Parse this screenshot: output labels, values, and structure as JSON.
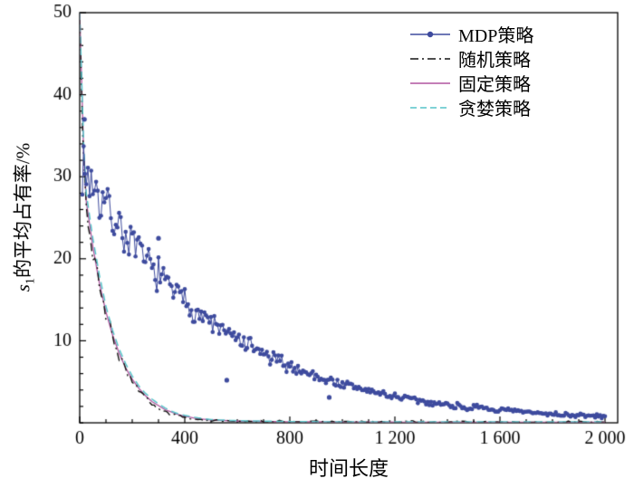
{
  "figure": {
    "background": "#ffffff",
    "axis_color": "#000000",
    "tick_label_color": "#000000"
  },
  "chart_data": {
    "type": "line",
    "title": "",
    "xlabel": "时间长度",
    "ylabel": "s1的平均占有率/%",
    "ylabel_parts": {
      "var": "s",
      "sub": "1",
      "rest": "的平均占有率/%"
    },
    "xlim": [
      0,
      2000
    ],
    "ylim": [
      0,
      50
    ],
    "grid": false,
    "legend_position": "top-right",
    "x_ticks": [
      {
        "v": 0,
        "label": "0"
      },
      {
        "v": 400,
        "label": "400"
      },
      {
        "v": 800,
        "label": "800"
      },
      {
        "v": 1200,
        "label": "1 200"
      },
      {
        "v": 1600,
        "label": "1 600"
      },
      {
        "v": 2000,
        "label": "2 000"
      }
    ],
    "y_ticks": [
      {
        "v": 10,
        "label": "10"
      },
      {
        "v": 20,
        "label": "20"
      },
      {
        "v": 30,
        "label": "30"
      },
      {
        "v": 40,
        "label": "40"
      },
      {
        "v": 50,
        "label": "50"
      }
    ],
    "x_minor_step": 100,
    "y_minor_step": 2,
    "series": [
      {
        "name": "MDP策略",
        "key": "mdp",
        "color": "#3e4b9e",
        "style": "solid",
        "line_width": 1,
        "marker": "circle",
        "marker_size": 2.3,
        "seed": 7,
        "densify_step": 6,
        "noise_base": 0.2,
        "noise_scale": 0.12,
        "x": [
          10,
          25,
          50,
          75,
          100,
          125,
          150,
          175,
          200,
          225,
          250,
          275,
          300,
          325,
          350,
          375,
          400,
          425,
          450,
          475,
          500,
          525,
          550,
          575,
          600,
          625,
          650,
          675,
          700,
          725,
          750,
          775,
          800,
          825,
          850,
          875,
          900,
          925,
          950,
          975,
          1000,
          1025,
          1050,
          1075,
          1100,
          1125,
          1150,
          1175,
          1200,
          1225,
          1250,
          1275,
          1300,
          1325,
          1350,
          1375,
          1400,
          1425,
          1450,
          1475,
          1500,
          1525,
          1550,
          1575,
          1600,
          1625,
          1650,
          1675,
          1700,
          1725,
          1750,
          1775,
          1800,
          1825,
          1850,
          1875,
          1900,
          1925,
          1950,
          1975,
          2000
        ],
        "y": [
          31.5,
          30.2,
          29.5,
          27.3,
          26.8,
          24.9,
          24.3,
          22.6,
          22.0,
          20.5,
          20.0,
          18.7,
          18.3,
          16.9,
          16.5,
          15.3,
          15.0,
          13.9,
          13.7,
          12.6,
          12.4,
          11.5,
          11.3,
          10.4,
          10.3,
          9.5,
          9.3,
          8.6,
          8.5,
          7.8,
          7.7,
          7.1,
          7.0,
          6.5,
          6.4,
          5.9,
          5.8,
          5.3,
          5.3,
          4.8,
          4.8,
          4.4,
          4.4,
          4.0,
          4.0,
          3.6,
          3.6,
          3.3,
          3.3,
          3.0,
          3.0,
          2.7,
          2.7,
          2.4,
          2.5,
          2.2,
          2.3,
          2.0,
          2.1,
          1.8,
          1.9,
          1.7,
          1.8,
          1.5,
          1.6,
          1.4,
          1.5,
          1.3,
          1.3,
          1.2,
          1.2,
          1.1,
          1.1,
          1.0,
          1.0,
          0.9,
          0.9,
          0.9,
          0.8,
          0.8,
          0.8
        ],
        "extra_points": [
          [
            18,
            37.0
          ],
          [
            300,
            22.5
          ],
          [
            560,
            5.2
          ],
          [
            950,
            3.1
          ]
        ]
      },
      {
        "name": "随机策略",
        "key": "random",
        "color": "#141414",
        "style": "dashdot",
        "line_width": 1.4,
        "marker": "none",
        "seed": 3,
        "densify_step": 10,
        "noise_base": 0.15,
        "noise_scale": 0.07,
        "x": [
          0,
          12,
          25,
          40,
          50,
          65,
          75,
          90,
          100,
          115,
          125,
          140,
          150,
          165,
          175,
          190,
          200,
          215,
          225,
          240,
          250,
          275,
          300,
          325,
          350,
          375,
          400,
          450,
          500,
          600,
          700,
          800,
          1000,
          1200,
          1400,
          1600,
          1800,
          2000
        ],
        "y": [
          50,
          36,
          26,
          23,
          21,
          18.5,
          16.5,
          14.5,
          13,
          11.8,
          10.5,
          9.2,
          8.0,
          7.3,
          6.5,
          5.7,
          5.0,
          4.4,
          3.8,
          3.4,
          3.0,
          2.3,
          1.7,
          1.3,
          1.0,
          0.8,
          0.6,
          0.4,
          0.3,
          0.2,
          0.18,
          0.15,
          0.12,
          0.1,
          0.1,
          0.1,
          0.1,
          0.1
        ],
        "extra_points": []
      },
      {
        "name": "固定策略",
        "key": "fixed",
        "color": "#b0559f",
        "style": "solid",
        "line_width": 1.3,
        "marker": "none",
        "seed": 1,
        "densify_step": 12,
        "noise_base": 0,
        "noise_scale": 0,
        "x": [
          0,
          15,
          25,
          50,
          75,
          100,
          125,
          150,
          175,
          200,
          225,
          250,
          275,
          300,
          325,
          350,
          375,
          400,
          450,
          500,
          600,
          800,
          1000,
          1200,
          1400,
          1600,
          1800,
          2000
        ],
        "y": [
          50,
          33,
          27,
          21.5,
          17,
          13.5,
          10.7,
          8.5,
          6.7,
          5.3,
          4.2,
          3.3,
          2.6,
          2.1,
          1.6,
          1.3,
          1.0,
          0.8,
          0.5,
          0.35,
          0.2,
          0.12,
          0.1,
          0.08,
          0.08,
          0.08,
          0.08,
          0.08
        ],
        "extra_points": []
      },
      {
        "name": "贪婪策略",
        "key": "greedy",
        "color": "#56c4c9",
        "style": "dashed",
        "line_width": 1.5,
        "marker": "none",
        "seed": 2,
        "densify_step": 12,
        "noise_base": 0,
        "noise_scale": 0,
        "x": [
          0,
          15,
          25,
          50,
          75,
          100,
          125,
          150,
          175,
          200,
          225,
          250,
          275,
          300,
          325,
          350,
          375,
          400,
          450,
          500,
          600,
          800,
          1000,
          1200,
          1400,
          1600,
          1800,
          2000
        ],
        "y": [
          50,
          34,
          28,
          22.5,
          18,
          14.2,
          11.3,
          9.0,
          7.2,
          5.7,
          4.5,
          3.6,
          2.9,
          2.3,
          1.8,
          1.4,
          1.1,
          0.9,
          0.6,
          0.4,
          0.25,
          0.15,
          0.1,
          0.1,
          0.1,
          0.1,
          0.1,
          0.1
        ],
        "extra_points": []
      }
    ]
  }
}
